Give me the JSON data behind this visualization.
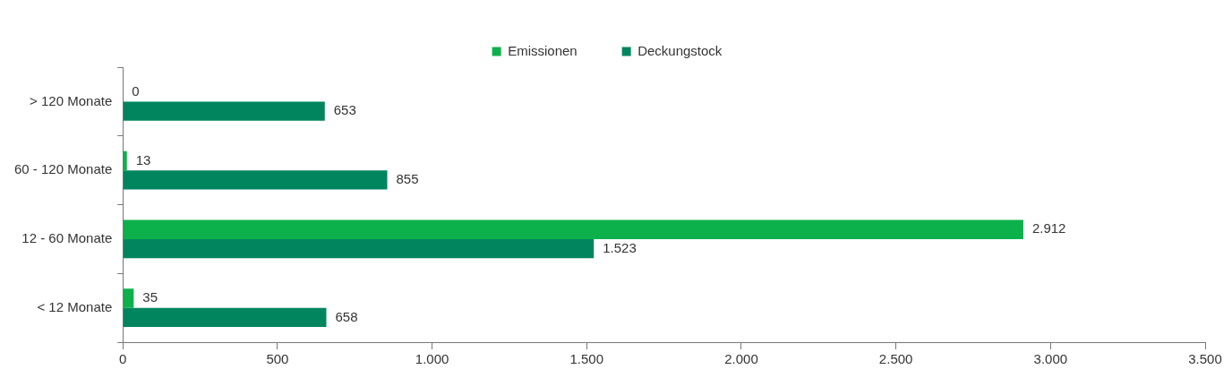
{
  "chart_data": {
    "type": "bar",
    "orientation": "horizontal",
    "categories": [
      "> 120 Monate",
      "60 - 120 Monate",
      "12 - 60 Monate",
      "< 12 Monate"
    ],
    "series": [
      {
        "name": "Emissionen",
        "color": "#0db14b",
        "values": [
          0,
          13,
          2912,
          35
        ],
        "value_labels": [
          "0",
          "13",
          "2.912",
          "35"
        ]
      },
      {
        "name": "Deckungstock",
        "color": "#00855f",
        "values": [
          653,
          855,
          1523,
          658
        ],
        "value_labels": [
          "653",
          "855",
          "1.523",
          "658"
        ]
      }
    ],
    "xlim": [
      0,
      3500
    ],
    "xticks": [
      0,
      500,
      {
        "value": 1000,
        "label": "1.000"
      },
      {
        "value": 1500,
        "label": "1.500"
      },
      {
        "value": 2000,
        "label": "2.000"
      },
      {
        "value": 2500,
        "label": "2.500"
      },
      {
        "value": 3000,
        "label": "3.000"
      },
      {
        "value": 3500,
        "label": "3.500"
      }
    ],
    "grid": false,
    "legend": "top"
  }
}
